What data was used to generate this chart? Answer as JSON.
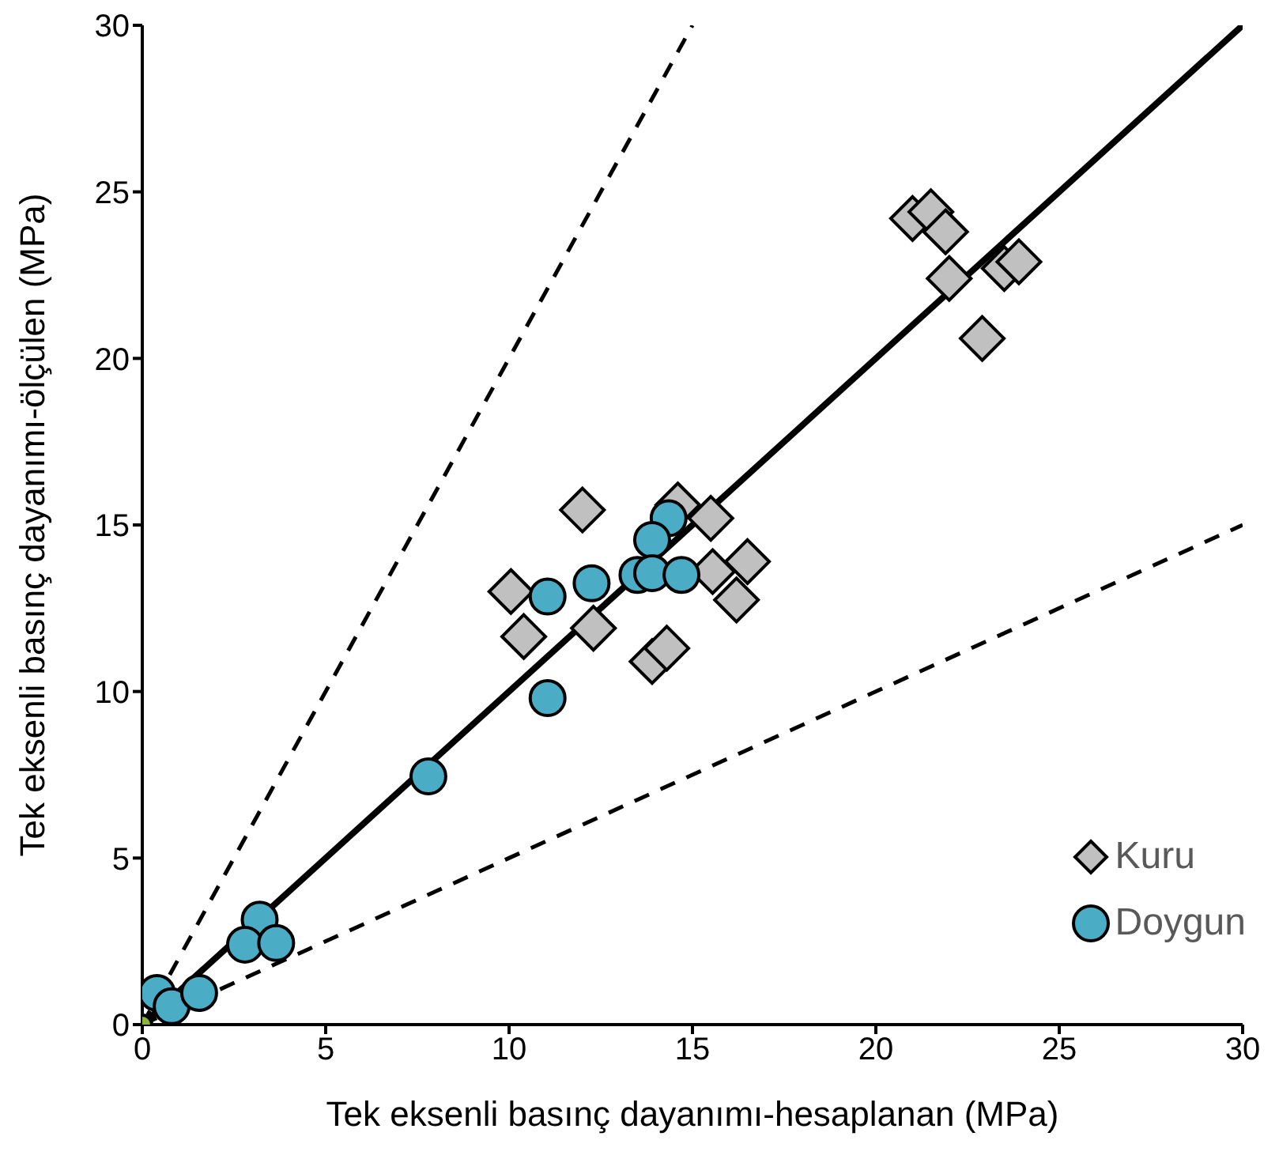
{
  "chart_data": {
    "type": "scatter",
    "xlabel": "Tek eksenli basınç dayanımı-hesaplanan (MPa)",
    "ylabel": "Tek eksenli basınç dayanımı-ölçülen (MPa)",
    "xlim": [
      0,
      30
    ],
    "ylim": [
      0,
      30
    ],
    "xticks": [
      0,
      5,
      10,
      15,
      20,
      25,
      30
    ],
    "yticks": [
      0,
      5,
      10,
      15,
      20,
      25,
      30
    ],
    "grid": false,
    "legend": "bottom right",
    "series": [
      {
        "type": "line",
        "color": "#000000",
        "line_style": "solid",
        "x": [
          0,
          30
        ],
        "values": [
          0,
          30
        ]
      },
      {
        "type": "line",
        "color": "#000000",
        "line_style": "dashed",
        "x": [
          0,
          15
        ],
        "values": [
          0,
          30
        ]
      },
      {
        "type": "line",
        "color": "#000000",
        "line_style": "dashed",
        "x": [
          0,
          30
        ],
        "values": [
          0,
          15
        ]
      },
      {
        "color": "#8db33a",
        "marker": "circle",
        "x": [
          0
        ],
        "values": [
          0
        ]
      },
      {
        "name": "Kuru",
        "color": "#c0c0c0",
        "marker": "diamond",
        "x": [
          21.0,
          21.5,
          21.9,
          22.0,
          23.5,
          23.9,
          22.9,
          12.0,
          14.6,
          15.5,
          10.05,
          10.4,
          12.3,
          13.9,
          14.3,
          15.55,
          16.5,
          16.2
        ],
        "values": [
          24.2,
          24.4,
          23.8,
          22.4,
          22.7,
          22.9,
          20.6,
          15.45,
          15.6,
          15.2,
          13.0,
          11.65,
          11.9,
          10.9,
          11.3,
          13.6,
          13.9,
          12.75
        ]
      },
      {
        "name": "Doygun",
        "color": "#4bacc6",
        "marker": "circle",
        "x": [
          14.35,
          13.9,
          13.5,
          13.9,
          14.7,
          12.25,
          11.05,
          11.05,
          7.8,
          3.2,
          2.8,
          3.65,
          0.4,
          0.8,
          1.55
        ],
        "values": [
          15.2,
          14.55,
          13.5,
          13.55,
          13.5,
          13.25,
          12.85,
          9.8,
          7.45,
          3.15,
          2.4,
          2.45,
          0.95,
          0.55,
          0.95
        ]
      }
    ]
  }
}
